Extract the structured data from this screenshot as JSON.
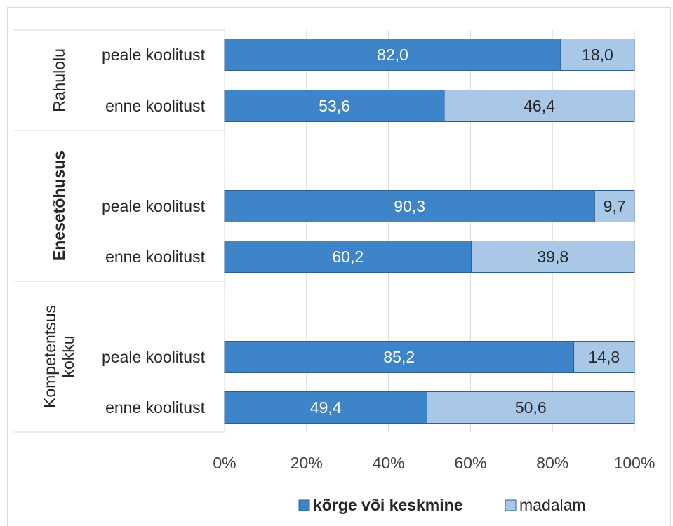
{
  "chart_data": {
    "type": "bar",
    "orientation": "horizontal",
    "stacked": "percent",
    "groups": [
      {
        "label": "Rahulolu",
        "bold": false,
        "categories": [
          "peale koolitust",
          "enne koolitust"
        ]
      },
      {
        "label": "Enesetõhusus",
        "bold": true,
        "categories": [
          "peale koolitust",
          "enne koolitust"
        ]
      },
      {
        "label": "Kompetentsus kokku",
        "bold": false,
        "categories": [
          "peale koolitust",
          "enne koolitust"
        ]
      }
    ],
    "series": [
      {
        "name": "kõrge või keskmine",
        "color": "#3d85c8",
        "label_color": "#ffffff",
        "values": [
          82.0,
          53.6,
          90.3,
          60.2,
          85.2,
          49.4
        ],
        "labels": [
          "82,0",
          "53,6",
          "90,3",
          "60,2",
          "85,2",
          "49,4"
        ]
      },
      {
        "name": "madalam",
        "color": "#a9c8e8",
        "label_color": "#262626",
        "values": [
          18.0,
          46.4,
          9.7,
          39.8,
          14.8,
          50.6
        ],
        "labels": [
          "18,0",
          "46,4",
          "9,7",
          "39,8",
          "14,8",
          "50,6"
        ]
      }
    ],
    "xticks": [
      "0%",
      "20%",
      "40%",
      "60%",
      "80%",
      "100%"
    ],
    "xlim": [
      0,
      100
    ],
    "grid": true,
    "legend": "bottom",
    "title": "",
    "xlabel": "",
    "ylabel": ""
  }
}
